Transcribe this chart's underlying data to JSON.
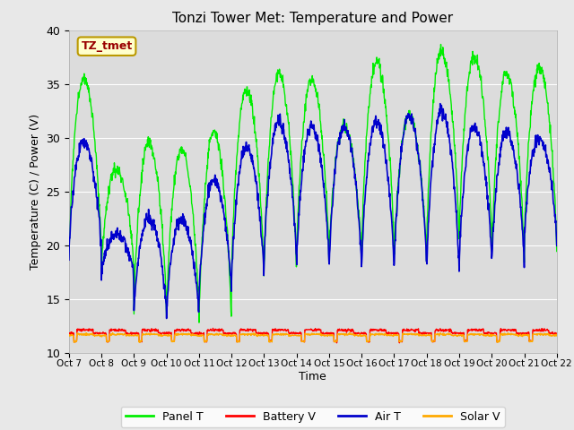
{
  "title": "Tonzi Tower Met: Temperature and Power",
  "xlabel": "Time",
  "ylabel": "Temperature (C) / Power (V)",
  "ylim": [
    10,
    40
  ],
  "xlim": [
    0,
    15
  ],
  "x_tick_labels": [
    "Oct 7",
    "Oct 8",
    "Oct 9",
    "Oct 10",
    "Oct 11",
    "Oct 12",
    "Oct 13",
    "Oct 14",
    "Oct 15",
    "Oct 16",
    "Oct 17",
    "Oct 18",
    "Oct 19",
    "Oct 20",
    "Oct 21",
    "Oct 22"
  ],
  "background_color": "#e8e8e8",
  "plot_bg_color": "#dcdcdc",
  "annotation_text": "TZ_tmet",
  "annotation_box_color": "#ffffcc",
  "annotation_text_color": "#990000",
  "panel_T_color": "#00ee00",
  "battery_V_color": "#ff0000",
  "air_T_color": "#0000cc",
  "solar_V_color": "#ffaa00",
  "panel_T_label": "Panel T",
  "battery_V_label": "Battery V",
  "air_T_label": "Air T",
  "solar_V_label": "Solar V",
  "panel_peaks": [
    35.5,
    27.0,
    29.5,
    28.8,
    30.5,
    34.5,
    36.0,
    35.5,
    31.0,
    37.0,
    32.0,
    38.0,
    37.5,
    36.0,
    36.5
  ],
  "panel_troughs": [
    18.5,
    17.5,
    13.5,
    13.0,
    12.0,
    16.5,
    17.0,
    18.0,
    18.5,
    19.0,
    18.0,
    19.5,
    20.0,
    18.0,
    19.5
  ],
  "air_peaks": [
    29.5,
    21.0,
    22.5,
    22.5,
    26.0,
    29.0,
    31.5,
    31.0,
    31.0,
    31.5,
    32.0,
    32.5,
    31.0,
    30.5,
    30.0
  ],
  "air_troughs": [
    19.0,
    17.0,
    13.5,
    13.0,
    15.0,
    16.5,
    18.0,
    18.0,
    17.5,
    17.5,
    17.5,
    17.0,
    18.0,
    18.0,
    20.0
  ]
}
